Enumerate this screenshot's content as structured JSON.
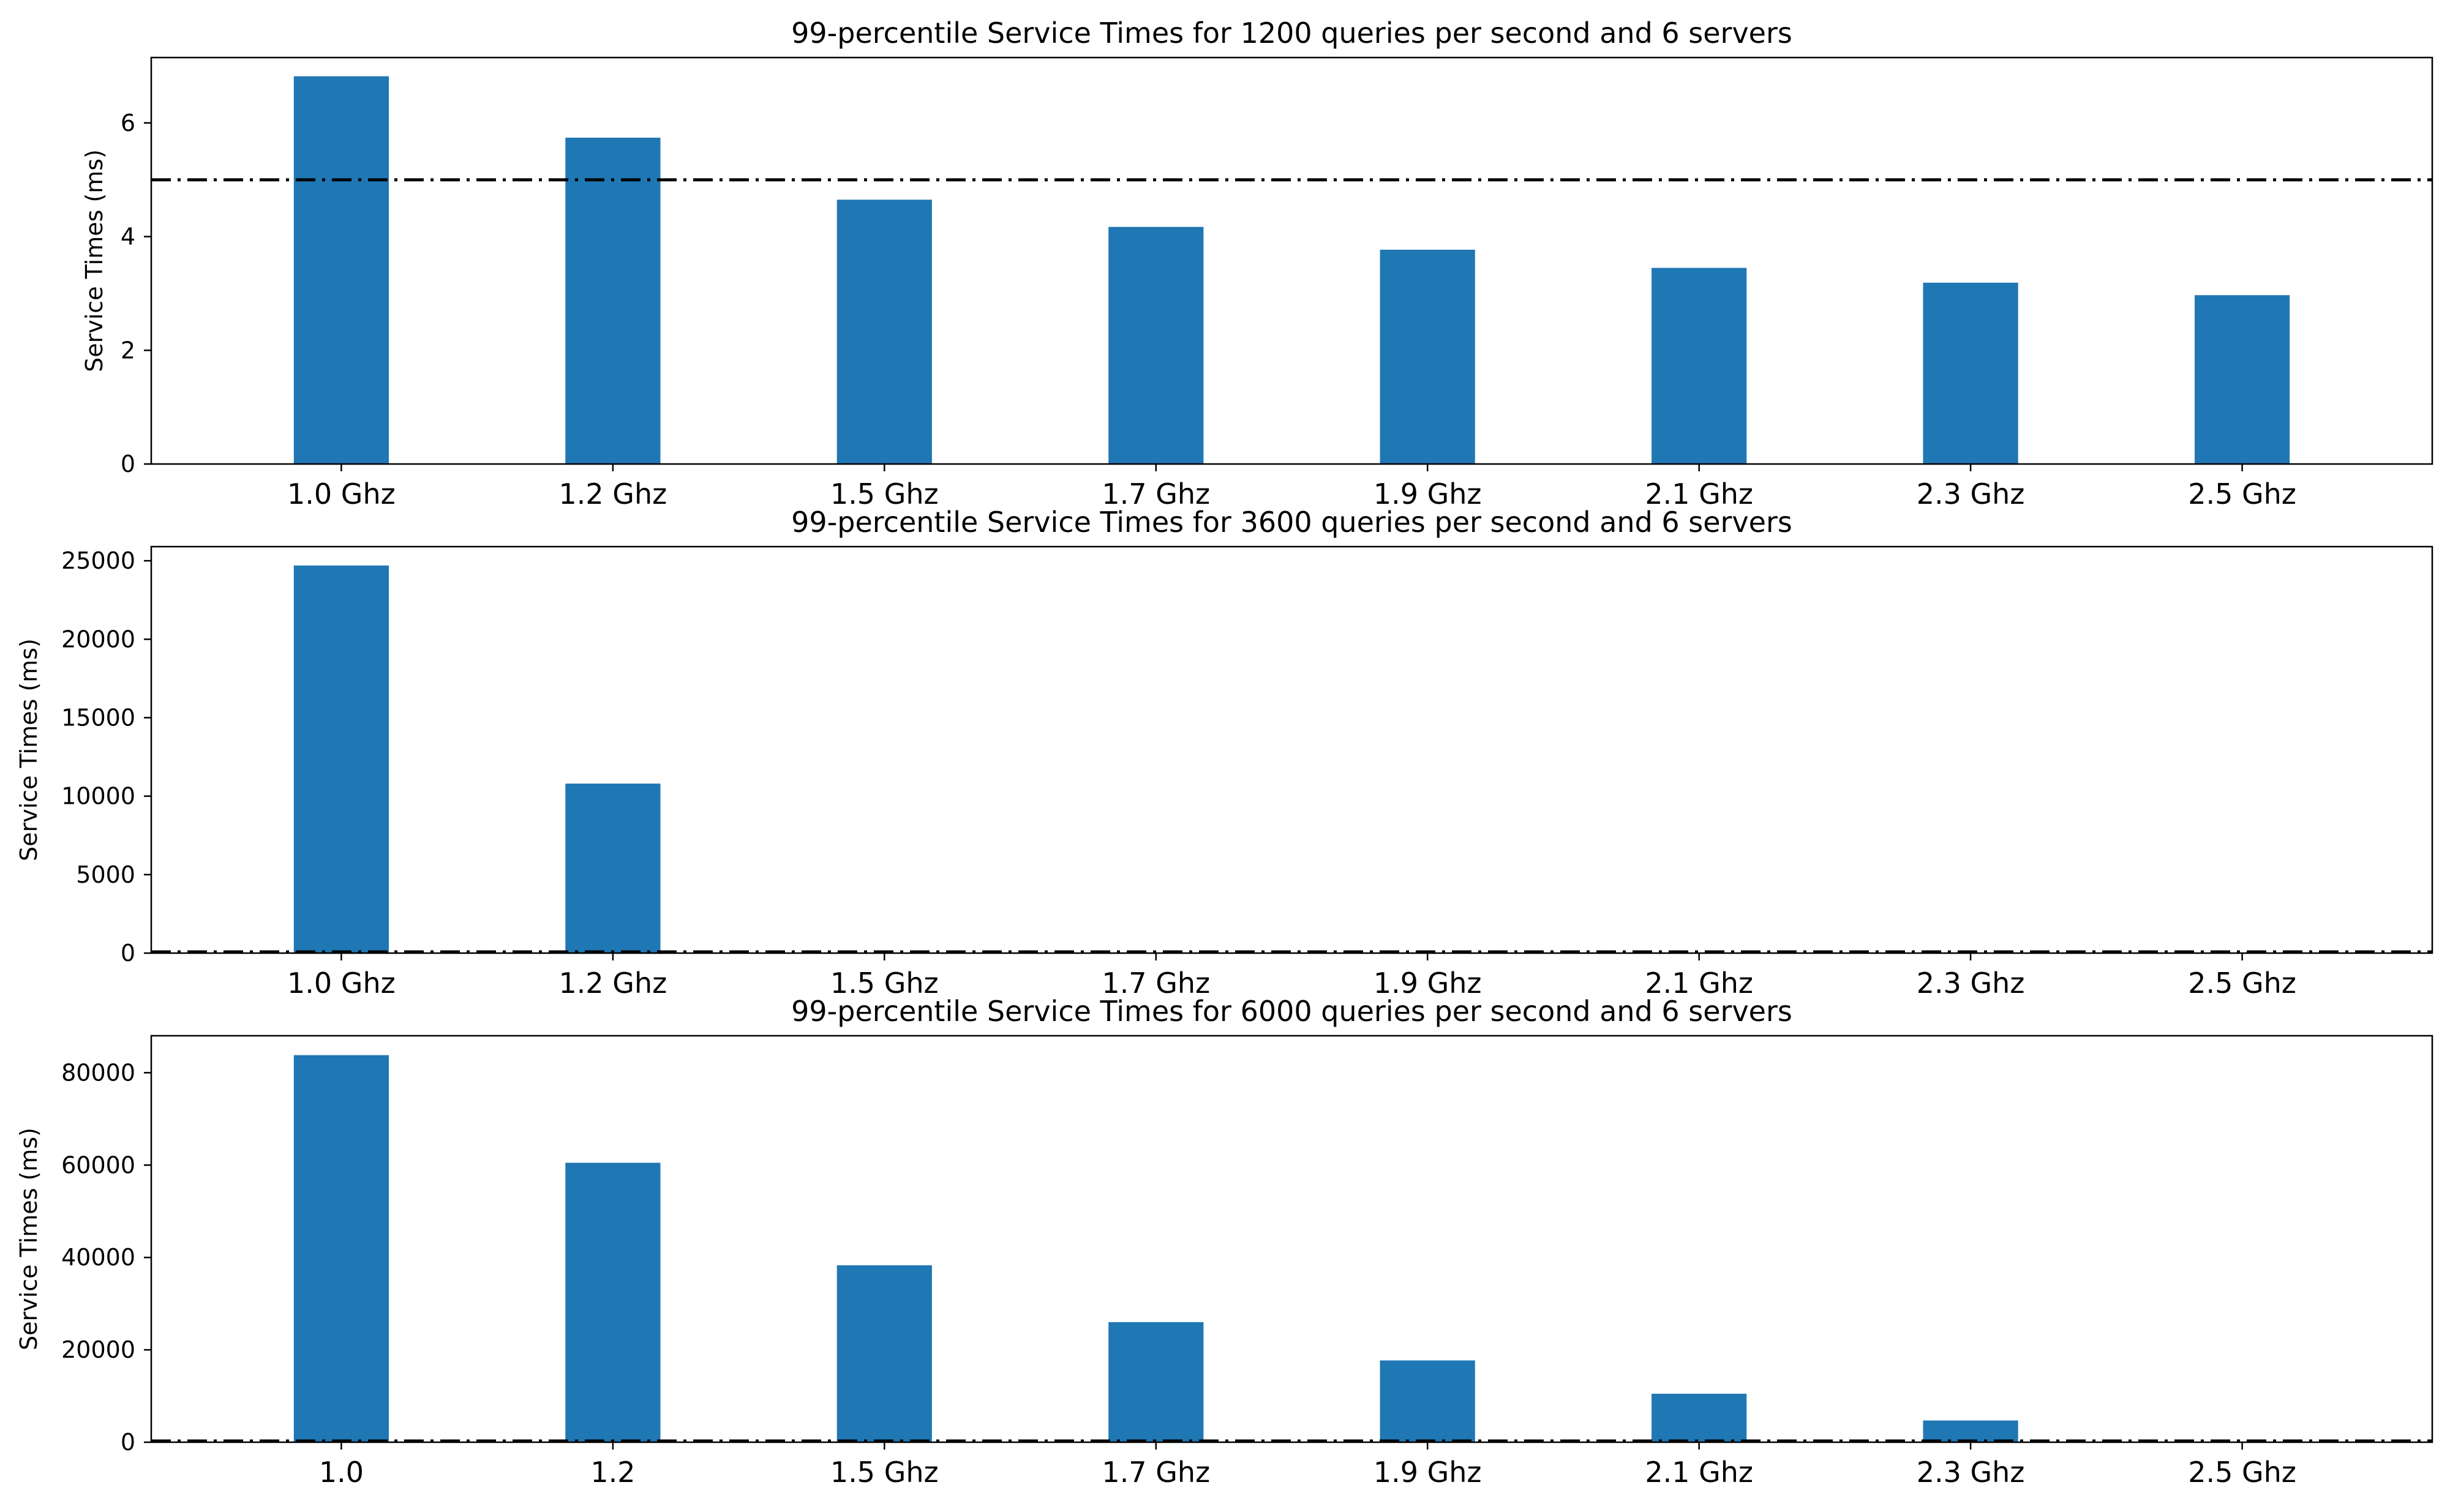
{
  "chart_data": [
    {
      "type": "bar",
      "title": "99-percentile Service Times for 1200 queries per second and 6 servers",
      "xlabel": "",
      "ylabel": "Service Times (ms)",
      "categories": [
        "1.0 Ghz",
        "1.2 Ghz",
        "1.5 Ghz",
        "1.7 Ghz",
        "1.9 Ghz",
        "2.1 Ghz",
        "2.3 Ghz",
        "2.5 Ghz"
      ],
      "values": [
        6.82,
        5.74,
        4.65,
        4.17,
        3.77,
        3.45,
        3.19,
        2.97
      ],
      "ylim": [
        0,
        7.15
      ],
      "yticks": [
        0,
        2,
        4,
        6
      ],
      "threshold": 5,
      "color": "#1f77b4"
    },
    {
      "type": "bar",
      "title": "99-percentile Service Times for 3600 queries per second and 6 servers",
      "xlabel": "",
      "ylabel": "Service Times (ms)",
      "categories": [
        "1.0 Ghz",
        "1.2 Ghz",
        "1.5 Ghz",
        "1.7 Ghz",
        "1.9 Ghz",
        "2.1 Ghz",
        "2.3 Ghz",
        "2.5 Ghz"
      ],
      "values": [
        24700,
        10800,
        5,
        4,
        4,
        3,
        3,
        3
      ],
      "ylim": [
        0,
        25900
      ],
      "yticks": [
        0,
        5000,
        10000,
        15000,
        20000,
        25000
      ],
      "threshold": 5,
      "color": "#1f77b4"
    },
    {
      "type": "bar",
      "title": "99-percentile Service Times for 6000 queries per second and 6 servers",
      "xlabel": "",
      "ylabel": "Service Times (ms)",
      "categories": [
        "1.0",
        "1.2",
        "1.5 Ghz",
        "1.7 Ghz",
        "1.9 Ghz",
        "2.1 Ghz",
        "2.3 Ghz",
        "2.5 Ghz"
      ],
      "values": [
        83800,
        60500,
        38300,
        26000,
        17700,
        10500,
        4700,
        100
      ],
      "ylim": [
        0,
        88000
      ],
      "yticks": [
        0,
        20000,
        40000,
        60000,
        80000
      ],
      "threshold": 5,
      "color": "#1f77b4"
    }
  ]
}
